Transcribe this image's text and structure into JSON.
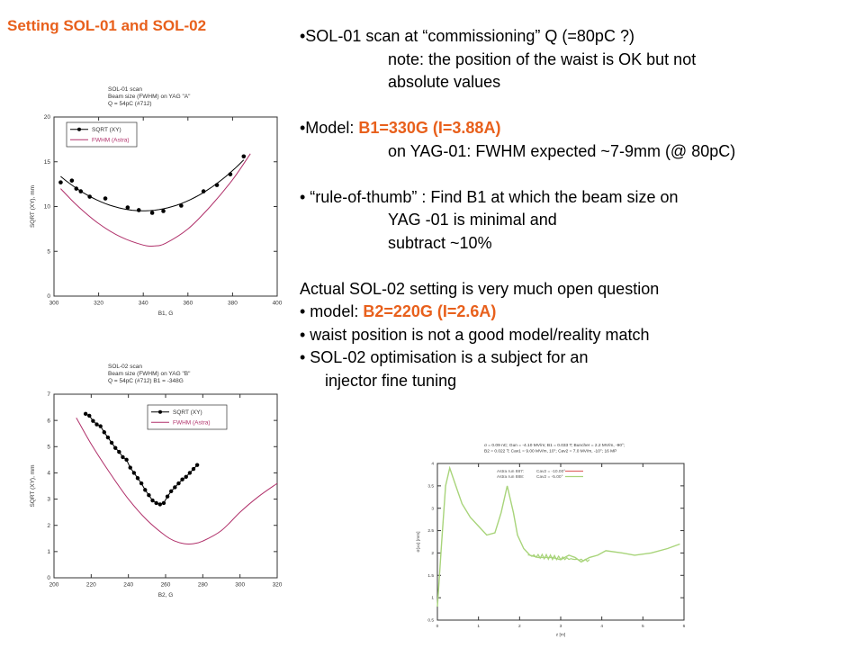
{
  "slide": {
    "title": "Setting SOL-01 and SOL-02",
    "accent_color": "#e8601c"
  },
  "bullets": {
    "b1_main": "•SOL-01 scan at “commissioning” Q (=80pC ?)",
    "b1_note1": "note: the position of the waist is OK but not",
    "b1_note2": "absolute values",
    "b2_prefix": "•Model: ",
    "b2_highlight": "B1=330G (I=3.88A)",
    "b2_sub": "on YAG-01: FWHM expected ~7-9mm (@ 80pC)",
    "b3_main": "• “rule-of-thumb” : Find B1 at which the beam size on",
    "b3_sub1": "YAG -01 is minimal and",
    "b3_sub2": "subtract ~10%",
    "p_actual": "Actual SOL-02 setting is very much open question",
    "s1_prefix": "•  model: ",
    "s1_highlight": "B2=220G (I=2.6A)",
    "s2": "•  waist position is not a good model/reality match",
    "s3_main": "•  SOL-02 optimisation is a subject for an",
    "s3_sub": "injector fine tuning"
  },
  "chart_data": [
    {
      "type": "scatter",
      "header": [
        "SOL-01 scan",
        "Beam size (FWHM) on YAG \"A\"",
        "Q = 54pC (#712)"
      ],
      "xlabel": "B1, G",
      "ylabel": "SQRT (XY), mm",
      "xlim": [
        300,
        400
      ],
      "ylim": [
        0,
        20
      ],
      "xticks": [
        "300",
        "320",
        "340",
        "360",
        "380",
        "400"
      ],
      "yticks": [
        "0",
        "5",
        "10",
        "15",
        "20"
      ],
      "legend_position": "top-left",
      "series": [
        {
          "name": "SQRT (XY)",
          "color": "#000000",
          "style": "points-with-fit",
          "x": [
            303,
            308,
            310,
            312,
            316,
            323,
            333,
            338,
            344,
            349,
            357,
            367,
            373,
            379,
            385
          ],
          "y": [
            12.7,
            12.9,
            12.0,
            11.7,
            11.1,
            10.9,
            9.9,
            9.6,
            9.3,
            9.5,
            10.1,
            11.7,
            12.4,
            13.6,
            15.6
          ]
        },
        {
          "name": "FWHM (Astra)",
          "color": "#b0306a",
          "style": "line",
          "x": [
            303,
            310,
            320,
            330,
            340,
            345,
            350,
            360,
            370,
            380,
            388
          ],
          "y": [
            12.0,
            10.2,
            8.1,
            6.6,
            5.7,
            5.6,
            5.9,
            7.5,
            10.0,
            13.0,
            15.9
          ]
        }
      ]
    },
    {
      "type": "line",
      "header": [
        "SOL-02 scan",
        "Beam size (FWHM) on YAG \"B\"",
        "Q = 54pC (#712)    B1 = -348G"
      ],
      "xlabel": "B2, G",
      "ylabel": "SQRT (XY), mm",
      "xlim": [
        200,
        320
      ],
      "ylim": [
        0,
        7
      ],
      "xticks": [
        "200",
        "220",
        "240",
        "260",
        "280",
        "300",
        "320"
      ],
      "yticks": [
        "0",
        "1",
        "2",
        "3",
        "4",
        "5",
        "6",
        "7"
      ],
      "legend_position": "top-right",
      "series": [
        {
          "name": "SQRT (XY)",
          "color": "#000000",
          "style": "line-points",
          "x": [
            217,
            219,
            221,
            223,
            225,
            227,
            229,
            231,
            233,
            235,
            237,
            239,
            241,
            243,
            245,
            247,
            249,
            251,
            253,
            255,
            257,
            259,
            261,
            263,
            265,
            267,
            269,
            271,
            273,
            275,
            277
          ],
          "y": [
            6.25,
            6.18,
            5.98,
            5.85,
            5.78,
            5.55,
            5.35,
            5.15,
            4.95,
            4.8,
            4.6,
            4.5,
            4.2,
            4.0,
            3.8,
            3.6,
            3.35,
            3.15,
            2.95,
            2.85,
            2.8,
            2.85,
            3.1,
            3.3,
            3.45,
            3.6,
            3.75,
            3.85,
            4.0,
            4.15,
            4.3
          ]
        },
        {
          "name": "FWHM (Astra)",
          "color": "#b0306a",
          "style": "line",
          "x": [
            212,
            220,
            230,
            240,
            250,
            260,
            265,
            270,
            275,
            280,
            290,
            300,
            310,
            320
          ],
          "y": [
            6.1,
            5.1,
            4.0,
            3.0,
            2.2,
            1.6,
            1.4,
            1.3,
            1.3,
            1.4,
            1.8,
            2.5,
            3.1,
            3.6
          ]
        }
      ]
    },
    {
      "type": "line",
      "header": [
        "σ = 0.09 nC; Gun = -4.10 MV/m; B1 = 0.033 T; Buncher = 2.2 MV/m, -90°;",
        "B2 = 0.022 T; Cav1 = 9.00 MV/m, 10°; Cav2 = 7.0 MV/m, -10°; 16 MP"
      ],
      "xlabel": "z [m]",
      "ylabel": "σ(xx) [mm]",
      "xlim": [
        0,
        6
      ],
      "ylim": [
        0.5,
        4
      ],
      "xticks": [
        "0",
        "1",
        "2",
        "3",
        "4",
        "5",
        "6"
      ],
      "yticks": [
        "0.5",
        "1",
        "1.5",
        "2",
        "2.5",
        "3",
        "3.5",
        "4"
      ],
      "legend_position": "top-left",
      "legend": [
        {
          "label": "Astra run 887:",
          "setting": "Cav2 = -10.00°",
          "color": "#e06a6a"
        },
        {
          "label": "Astra run 888:",
          "setting": "Cav2 = -5.00°",
          "color": "#a8d47a"
        }
      ],
      "series": [
        {
          "name": "Astra run 888",
          "color": "#a8d47a",
          "style": "line",
          "x": [
            0.0,
            0.1,
            0.2,
            0.3,
            0.45,
            0.6,
            0.8,
            1.0,
            1.2,
            1.4,
            1.55,
            1.7,
            1.85,
            1.95,
            2.1,
            2.25,
            2.45,
            2.6,
            2.8,
            3.0,
            3.2,
            3.35,
            3.5,
            3.7,
            3.9,
            4.1,
            4.5,
            4.8,
            5.2,
            5.6,
            5.9
          ],
          "y": [
            0.8,
            2.2,
            3.5,
            3.9,
            3.5,
            3.1,
            2.8,
            2.6,
            2.4,
            2.45,
            2.9,
            3.5,
            2.9,
            2.4,
            2.1,
            1.95,
            1.9,
            1.9,
            1.9,
            1.85,
            1.95,
            1.9,
            1.8,
            1.9,
            1.95,
            2.05,
            2.0,
            1.95,
            2.0,
            2.1,
            2.2
          ]
        }
      ]
    }
  ]
}
